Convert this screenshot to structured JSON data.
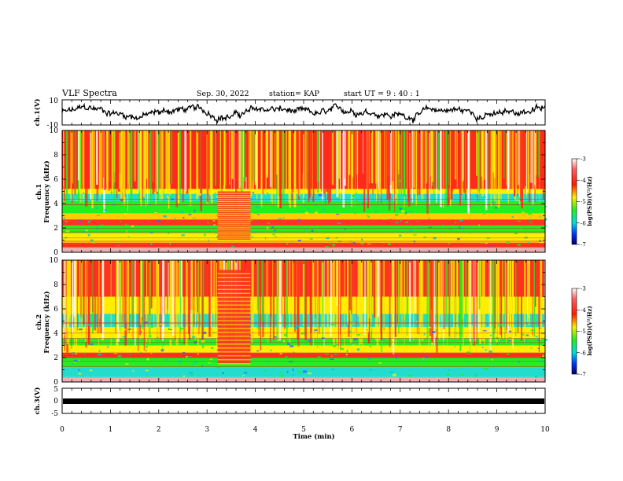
{
  "header": {
    "title": "VLF Spectra",
    "date": "Sep. 30, 2022",
    "station": "station= KAP",
    "start": "start  UT =   9 : 40 : 1"
  },
  "chart_data": [
    {
      "type": "line",
      "panel": "ch1-voltage",
      "ylabel": "ch.1(V)",
      "ylim": [
        -10,
        10
      ],
      "yticks": [
        "10",
        "-10"
      ],
      "xlim": [
        0,
        10
      ],
      "note_series": "noisy waveform oscillating roughly between -8 and 9"
    },
    {
      "type": "heatmap",
      "panel": "ch1-spectrogram",
      "ylabel": "ch.1\nFrequency (kHz)",
      "ylim": [
        0,
        10
      ],
      "yticks": [
        "0",
        "2",
        "4",
        "6",
        "8",
        "10"
      ],
      "xlim": [
        0,
        10
      ],
      "colorbar": {
        "label": "log(PSD)(V²/Hz)",
        "range": [
          -7,
          -3
        ],
        "ticks": [
          "-3",
          "-4",
          "-5",
          "-6",
          "-7"
        ]
      }
    },
    {
      "type": "heatmap",
      "panel": "ch2-spectrogram",
      "ylabel": "ch.2\nFrequency (kHz)",
      "ylim": [
        0,
        10
      ],
      "yticks": [
        "0",
        "2",
        "4",
        "6",
        "8",
        "10"
      ],
      "xlim": [
        0,
        10
      ],
      "colorbar": {
        "label": "log(PSD)(V²/Hz)",
        "range": [
          -7,
          -3
        ],
        "ticks": [
          "-3",
          "-4",
          "-5",
          "-6",
          "-7"
        ]
      }
    },
    {
      "type": "line",
      "panel": "ch3-voltage",
      "ylabel": "ch.3(V)",
      "ylim": [
        -5,
        5
      ],
      "yticks": [
        "5",
        "0",
        "-5"
      ],
      "xlim": [
        0,
        10
      ],
      "note_series": "nearly flat band around -1"
    }
  ],
  "xaxis": {
    "label": "Time (min)",
    "ticks": [
      "0",
      "1",
      "2",
      "3",
      "4",
      "5",
      "6",
      "7",
      "8",
      "9",
      "10"
    ]
  },
  "colors": {
    "axis": "#000000",
    "high": "#ff2a1a",
    "mid": "#ffee00",
    "low": "#22ee22",
    "lower": "#00cccc",
    "min": "#0000aa"
  }
}
